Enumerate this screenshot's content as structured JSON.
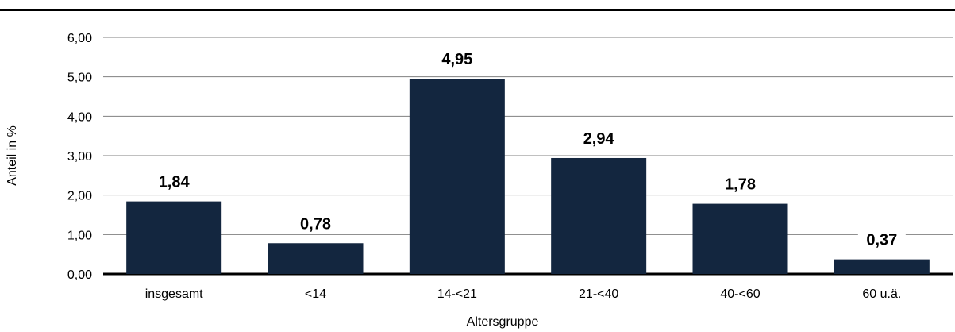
{
  "chart_data": {
    "type": "bar",
    "title": "",
    "xlabel": "Altersgruppe",
    "ylabel": "Anteil in %",
    "categories": [
      "insgesamt",
      "<14",
      "14-<21",
      "21-<40",
      "40-<60",
      "60 u.ä."
    ],
    "values": [
      1.84,
      0.78,
      4.95,
      2.94,
      1.78,
      0.37
    ],
    "value_labels": [
      "1,84",
      "0,78",
      "4,95",
      "2,94",
      "1,78",
      "0,37"
    ],
    "y_ticks": [
      "0,00",
      "1,00",
      "2,00",
      "3,00",
      "4,00",
      "5,00",
      "6,00"
    ],
    "ylim": [
      0,
      6
    ],
    "grid": true,
    "legend": "none",
    "bar_color": "#13263f"
  }
}
